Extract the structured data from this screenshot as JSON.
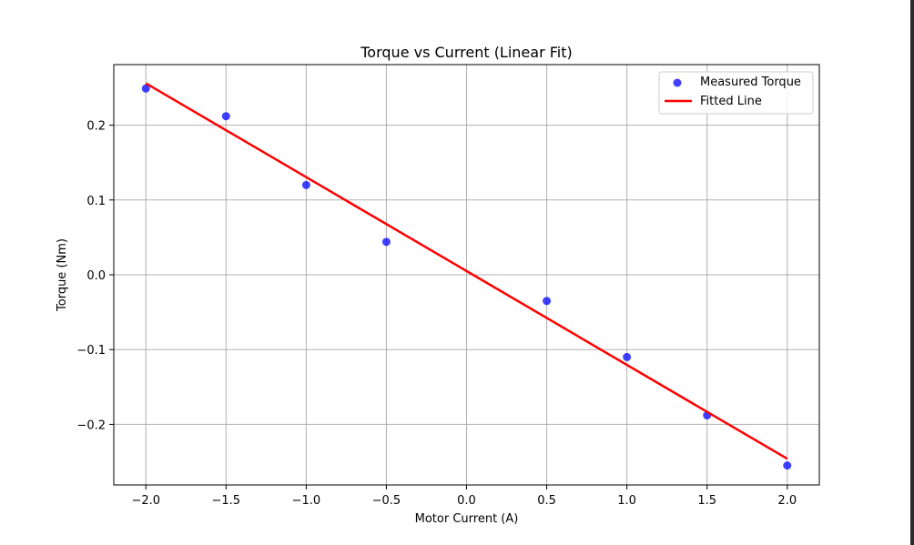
{
  "chart_data": {
    "type": "scatter",
    "title": "Torque vs Current (Linear Fit)",
    "xlabel": "Motor Current (A)",
    "ylabel": "Torque (Nm)",
    "xlim": [
      -2.2,
      2.2
    ],
    "ylim": [
      -0.281,
      0.281
    ],
    "xticks": [
      -2.0,
      -1.5,
      -1.0,
      -0.5,
      0.0,
      0.5,
      1.0,
      1.5,
      2.0
    ],
    "xtick_labels": [
      "−2.0",
      "−1.5",
      "−1.0",
      "−0.5",
      "0.0",
      "0.5",
      "1.0",
      "1.5",
      "2.0"
    ],
    "yticks": [
      -0.2,
      -0.1,
      0.0,
      0.1,
      0.2
    ],
    "ytick_labels": [
      "−0.2",
      "−0.1",
      "0.0",
      "0.1",
      "0.2"
    ],
    "grid": true,
    "legend_position": "top-right",
    "series": [
      {
        "name": "Measured Torque",
        "type": "scatter",
        "color": "#0000ff",
        "x": [
          -2.0,
          -1.5,
          -1.0,
          -0.5,
          0.5,
          1.0,
          1.5,
          2.0
        ],
        "y": [
          0.249,
          0.212,
          0.12,
          0.044,
          -0.035,
          -0.11,
          -0.188,
          -0.255
        ]
      },
      {
        "name": "Fitted Line",
        "type": "line",
        "color": "#ff0000",
        "x": [
          -2.0,
          2.0
        ],
        "y": [
          0.256,
          -0.246
        ]
      }
    ]
  }
}
